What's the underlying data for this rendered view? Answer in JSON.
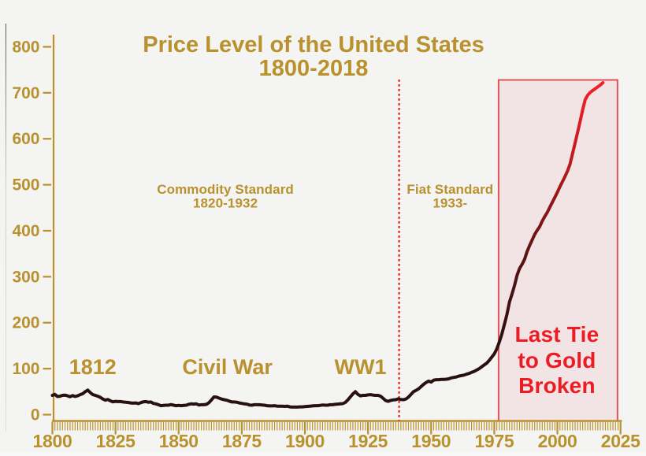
{
  "title": {
    "line1": "Price Level of the United States",
    "line2": "1800-2018"
  },
  "colors": {
    "background": "#f4f4f3",
    "gold": "#b9912d",
    "red_text": "#ed1c24",
    "dotted_line": "#e8342e",
    "box_border": "rgba(222,32,38,0.75)",
    "box_fill": "rgba(226,38,48,0.08)",
    "line_gradient": [
      [
        0,
        "#261111"
      ],
      [
        0.22,
        "#2b1010"
      ],
      [
        0.355,
        "#421111"
      ],
      [
        0.49,
        "#5e1313"
      ],
      [
        0.623,
        "#8c1616"
      ],
      [
        0.758,
        "#bb1a1e"
      ],
      [
        0.88,
        "#dc1e23"
      ],
      [
        0.99,
        "#ee2228"
      ]
    ]
  },
  "chart_data": {
    "type": "line",
    "title": "Price Level of the United States 1800-2018",
    "xlabel": "",
    "ylabel": "",
    "xlim": [
      1800,
      2025
    ],
    "ylim": [
      0,
      800
    ],
    "x_ticks": [
      1800,
      1825,
      1850,
      1875,
      1900,
      1925,
      1950,
      1975,
      2000,
      2025
    ],
    "y_ticks": [
      0,
      100,
      200,
      300,
      400,
      500,
      600,
      700,
      800
    ],
    "grid": false,
    "legend": false,
    "dotted_line_year": 1937.3,
    "shaded_region": {
      "x0": 1976.7,
      "x1": 2023.8,
      "value_top": 728,
      "label": "Last Tie to Gold Broken"
    },
    "annotations": [
      {
        "id": "annotation-1812",
        "text": "1812",
        "year": 1816,
        "value": 88.5
      },
      {
        "id": "annotation-civil-war",
        "text": "Civil War",
        "year": 1869.3,
        "value": 88.5
      },
      {
        "id": "annotation-ww1",
        "text": "WW1",
        "year": 1922,
        "value": 88.5
      },
      {
        "id": "label-commodity-1",
        "text": "Commodity Standard",
        "year": 1868.5,
        "value": 480.5
      },
      {
        "id": "label-commodity-2",
        "text": "1820-1932",
        "year": 1868.5,
        "value": 450.5
      },
      {
        "id": "label-fiat-1",
        "text": "Fiat Standard",
        "year": 1957.5,
        "value": 480.5
      },
      {
        "id": "label-fiat-2",
        "text": "1933-",
        "year": 1957.5,
        "value": 450.5
      },
      {
        "id": "label-gold-1",
        "text": "Last Tie",
        "year": 1999.8,
        "value": 158.5
      },
      {
        "id": "label-gold-2",
        "text": "to Gold",
        "year": 1999.8,
        "value": 102
      },
      {
        "id": "label-gold-3",
        "text": "Broken",
        "year": 1999.8,
        "value": 47
      }
    ],
    "series": [
      {
        "name": "price_level",
        "x_start": 1800,
        "x_step": 1,
        "values": [
          42,
          44,
          39.5,
          40,
          42,
          42.5,
          41,
          39,
          41.5,
          39.5,
          41,
          43.5,
          45.5,
          50,
          53.5,
          48,
          43.5,
          42,
          40,
          37.5,
          34,
          31.5,
          33,
          30,
          28,
          29,
          28.5,
          28.5,
          27.5,
          27,
          26.5,
          25.5,
          25,
          25.5,
          24,
          26,
          28,
          28.5,
          27,
          27.5,
          24.5,
          23.5,
          21.5,
          19.5,
          20,
          20.5,
          20.5,
          22,
          20.5,
          19.5,
          20,
          19.5,
          20,
          20.5,
          22.5,
          23.5,
          23,
          23.5,
          21,
          21.5,
          21.5,
          22.5,
          26,
          32,
          38.5,
          38,
          36,
          34,
          32.5,
          31.5,
          29.5,
          27.5,
          27.5,
          27,
          25.5,
          24.5,
          23.5,
          23,
          21,
          20.5,
          21.5,
          21.5,
          21.5,
          21,
          20.5,
          19.5,
          19,
          19,
          19.5,
          18.5,
          18.5,
          18.5,
          18,
          18.5,
          17,
          16.5,
          16.5,
          16.5,
          17,
          17,
          17.5,
          18,
          18.5,
          19,
          19.5,
          19.5,
          20,
          21,
          20.5,
          20.5,
          21.5,
          21.5,
          22.5,
          23,
          23.5,
          24,
          26.5,
          32,
          38.5,
          45,
          50,
          44,
          41,
          42,
          42,
          43,
          43.5,
          42.5,
          42,
          42,
          40,
          35.5,
          30.5,
          29,
          31,
          32,
          32.5,
          34.5,
          33,
          32.5,
          34,
          38,
          44,
          50,
          53,
          56,
          61,
          66,
          70,
          73,
          71,
          75,
          76,
          76,
          76.5,
          76.5,
          77,
          78,
          80,
          81,
          82,
          84,
          85,
          86,
          88,
          89.5,
          92,
          94,
          97,
          100,
          104,
          108,
          112,
          118,
          125,
          132,
          143,
          158,
          175,
          196,
          218,
          245,
          262,
          281,
          303,
          318,
          327,
          338,
          355,
          368,
          380,
          392,
          401,
          409,
          421,
          431,
          440,
          451,
          462,
          473,
          484,
          496,
          507,
          518,
          530,
          545,
          568,
          591,
          614,
          638,
          663,
          685,
          695,
          701,
          705,
          709,
          713,
          717,
          722
        ]
      }
    ]
  }
}
